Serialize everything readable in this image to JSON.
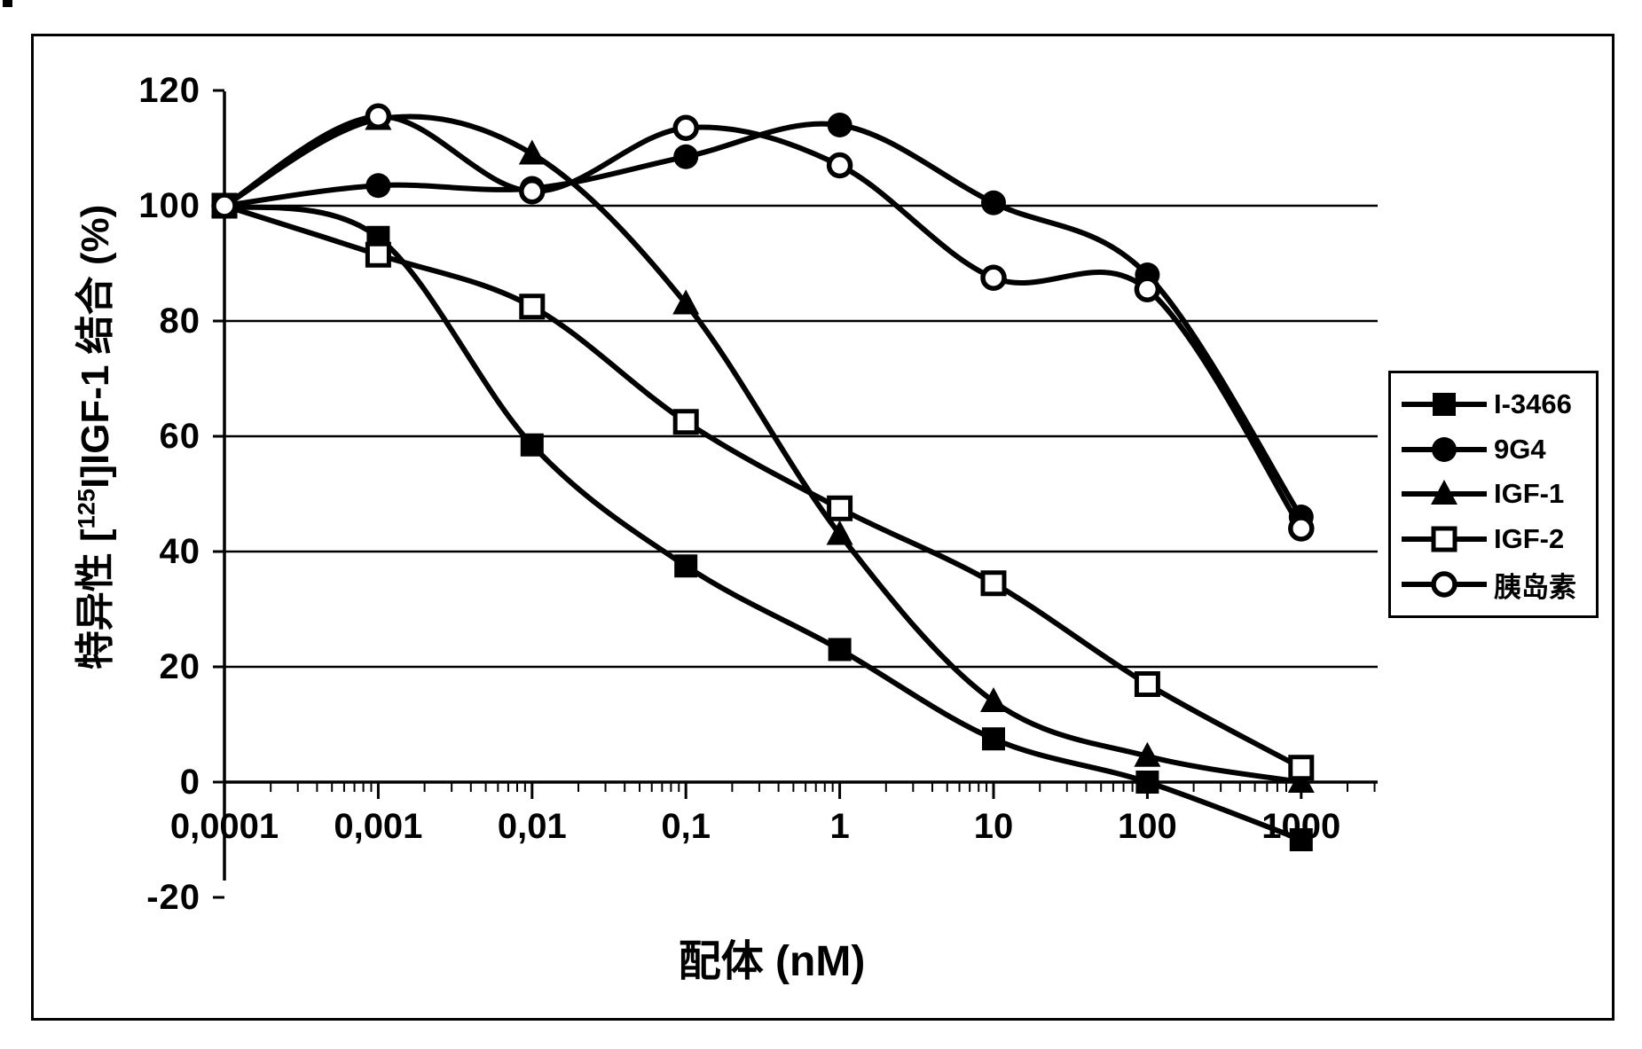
{
  "figure": {
    "xlabel": "配体 (nM)",
    "ylabel_prefix": "特异性 [",
    "ylabel_sup": "125",
    "ylabel_suffix": "I]IGF-1 结合 (%)"
  },
  "colors": {
    "ink": "#000000",
    "background": "#ffffff"
  },
  "chart_data": {
    "type": "line",
    "x_scale": "log",
    "title": "",
    "xlabel": "配体 (nM)",
    "ylabel": "特异性 [125I]IGF-1 结合 (%)",
    "x": [
      0.0001,
      0.001,
      0.01,
      0.1,
      1,
      10,
      100,
      1000
    ],
    "x_tick_labels": [
      "0,0001",
      "0,001",
      "0,01",
      "0,1",
      "1",
      "10",
      "100",
      "1000"
    ],
    "y_ticks": [
      120,
      100,
      80,
      60,
      40,
      20,
      0,
      -20
    ],
    "y_tick_labels": [
      "120",
      "100",
      "80",
      "60",
      "40",
      "20",
      "0",
      "-20"
    ],
    "ylim": [
      -20,
      120
    ],
    "grid_y_values": [
      100,
      80,
      60,
      40,
      20
    ],
    "grid": true,
    "legend_position": "right",
    "series": [
      {
        "name": "I-3466",
        "marker": "filled-square",
        "values": [
          100,
          94.5,
          58.5,
          37.5,
          23,
          7.5,
          0,
          -10
        ]
      },
      {
        "name": "9G4",
        "marker": "filled-circle",
        "values": [
          100,
          103.5,
          103,
          108.5,
          114,
          100.5,
          88,
          46
        ]
      },
      {
        "name": "IGF-1",
        "marker": "filled-triangle",
        "values": [
          100,
          115,
          109,
          83,
          43,
          14,
          4.5,
          0
        ]
      },
      {
        "name": "IGF-2",
        "marker": "open-square",
        "values": [
          100,
          91.5,
          82.5,
          62.5,
          47.5,
          34.5,
          17,
          2.5
        ]
      },
      {
        "name": "胰岛素",
        "marker": "open-circle",
        "values": [
          100,
          115.5,
          102.5,
          113.5,
          107,
          87.5,
          85.5,
          44
        ]
      }
    ]
  }
}
